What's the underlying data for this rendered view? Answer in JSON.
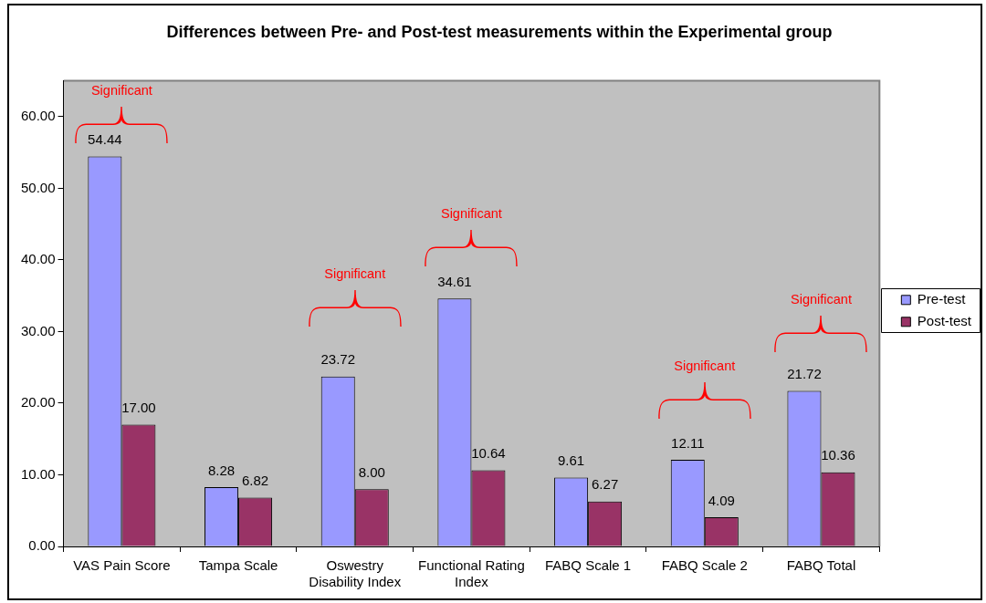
{
  "chart_data": {
    "type": "bar",
    "title": "Differences between Pre- and Post-test measurements within the Experimental group",
    "categories": [
      "VAS Pain Score",
      "Tampa Scale",
      "Oswestry Disability Index",
      "Functional Rating Index",
      "FABQ Scale 1",
      "FABQ Scale 2",
      "FABQ Total"
    ],
    "series": [
      {
        "name": "Pre-test",
        "color": "#9999ff",
        "values": [
          54.44,
          8.28,
          23.72,
          34.61,
          9.61,
          12.11,
          21.72
        ],
        "value_labels": [
          "54.44",
          "8.28",
          "23.72",
          "34.61",
          "9.61",
          "12.11",
          "21.72"
        ]
      },
      {
        "name": "Post-test",
        "color": "#993366",
        "values": [
          17,
          6.82,
          8,
          10.64,
          6.27,
          4.09,
          10.36
        ],
        "value_labels": [
          "17.00",
          "6.82",
          "8.00",
          "10.64",
          "6.27",
          "4.09",
          "10.36"
        ]
      }
    ],
    "ylim": [
      0,
      65
    ],
    "yticks": [
      {
        "value": 0,
        "label": "0.00"
      },
      {
        "value": 10,
        "label": "10.00"
      },
      {
        "value": 20,
        "label": "20.00"
      },
      {
        "value": 30,
        "label": "30.00"
      },
      {
        "value": 40,
        "label": "40.00"
      },
      {
        "value": 50,
        "label": "50.00"
      },
      {
        "value": 60,
        "label": "60.00"
      }
    ],
    "legend": "right",
    "annotations": [
      "Significant",
      "Significant",
      "Significant",
      "Significant",
      "Significant"
    ]
  }
}
